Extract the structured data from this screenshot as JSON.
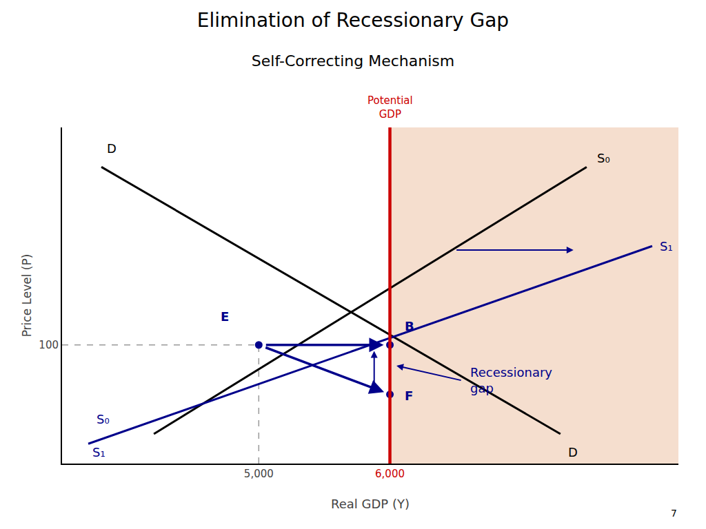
{
  "chart_data": {
    "type": "line",
    "title": "Elimination of Recessionary Gap",
    "subtitle": "Self-Correcting Mechanism",
    "x_label": "Real GDP (Y)",
    "y_label": "Price Level (P)",
    "xlim": [
      3500,
      8200
    ],
    "ylim": [
      40,
      210
    ],
    "xticks": [
      {
        "value": 5000,
        "label": "5,000"
      },
      {
        "value": 6000,
        "label": "6,000"
      }
    ],
    "yticks": [
      100
    ],
    "grid": false,
    "series": [
      {
        "color": "#000000",
        "x": [
          4200,
          7500
        ],
        "values": [
          55,
          190
        ]
      },
      {
        "color": "#000000",
        "x": [
          3800,
          7300
        ],
        "values": [
          190,
          55
        ]
      },
      {
        "color": "#00008b",
        "x": [
          3700,
          8000
        ],
        "values": [
          50,
          150
        ]
      }
    ],
    "potential_gdp": {
      "x": 6000,
      "color": "#cc0000",
      "label": "Potential\nGDP",
      "shade_color": "#f5dece"
    },
    "guide_color": "#999999",
    "point_color": "#00008b",
    "points": [
      {
        "label": "E",
        "x": 5000,
        "y": 100,
        "label_x": 4700,
        "label_y": 110
      },
      {
        "label": "B",
        "x": 6000,
        "y": 100,
        "label_x": 6100,
        "label_y": 105
      },
      {
        "label": "F",
        "x": 6000,
        "y": 75,
        "label_x": 6100,
        "label_y": 70
      }
    ],
    "arrow_color": "#00008b",
    "arrows": [
      {
        "x0": 5000,
        "y0": 100,
        "x1": 6000,
        "y1": 100
      },
      {
        "x0": 5000,
        "y0": 100,
        "x1": 6000,
        "y1": 75
      },
      {
        "x0": 5880,
        "y0": 78,
        "x1": 5880,
        "y1": 97
      },
      {
        "x0": 6500,
        "y0": 148,
        "x1": 7400,
        "y1": 148
      },
      {
        "x0": 6550,
        "y0": 82,
        "x1": 6050,
        "y1": 89.5
      }
    ],
    "annotations": [
      {
        "text": "S₀",
        "x": 7570,
        "y": 190,
        "color": "#000000"
      },
      {
        "text": "D",
        "x": 3830,
        "y": 195,
        "color": "#000000"
      },
      {
        "text": "D",
        "x": 7350,
        "y": 50,
        "color": "#000000"
      },
      {
        "text": "S₀",
        "x": 3750,
        "y": 58,
        "color": "#00008b"
      },
      {
        "text": "S₁",
        "x": 3720,
        "y": 50,
        "color": "#00008b"
      },
      {
        "text": "S₁",
        "x": 8050,
        "y": 150,
        "color": "#00008b"
      },
      {
        "text": "Recessionary\ngap",
        "x": 6600,
        "y": 82,
        "color": "#00008b"
      }
    ],
    "page_number": "7"
  }
}
